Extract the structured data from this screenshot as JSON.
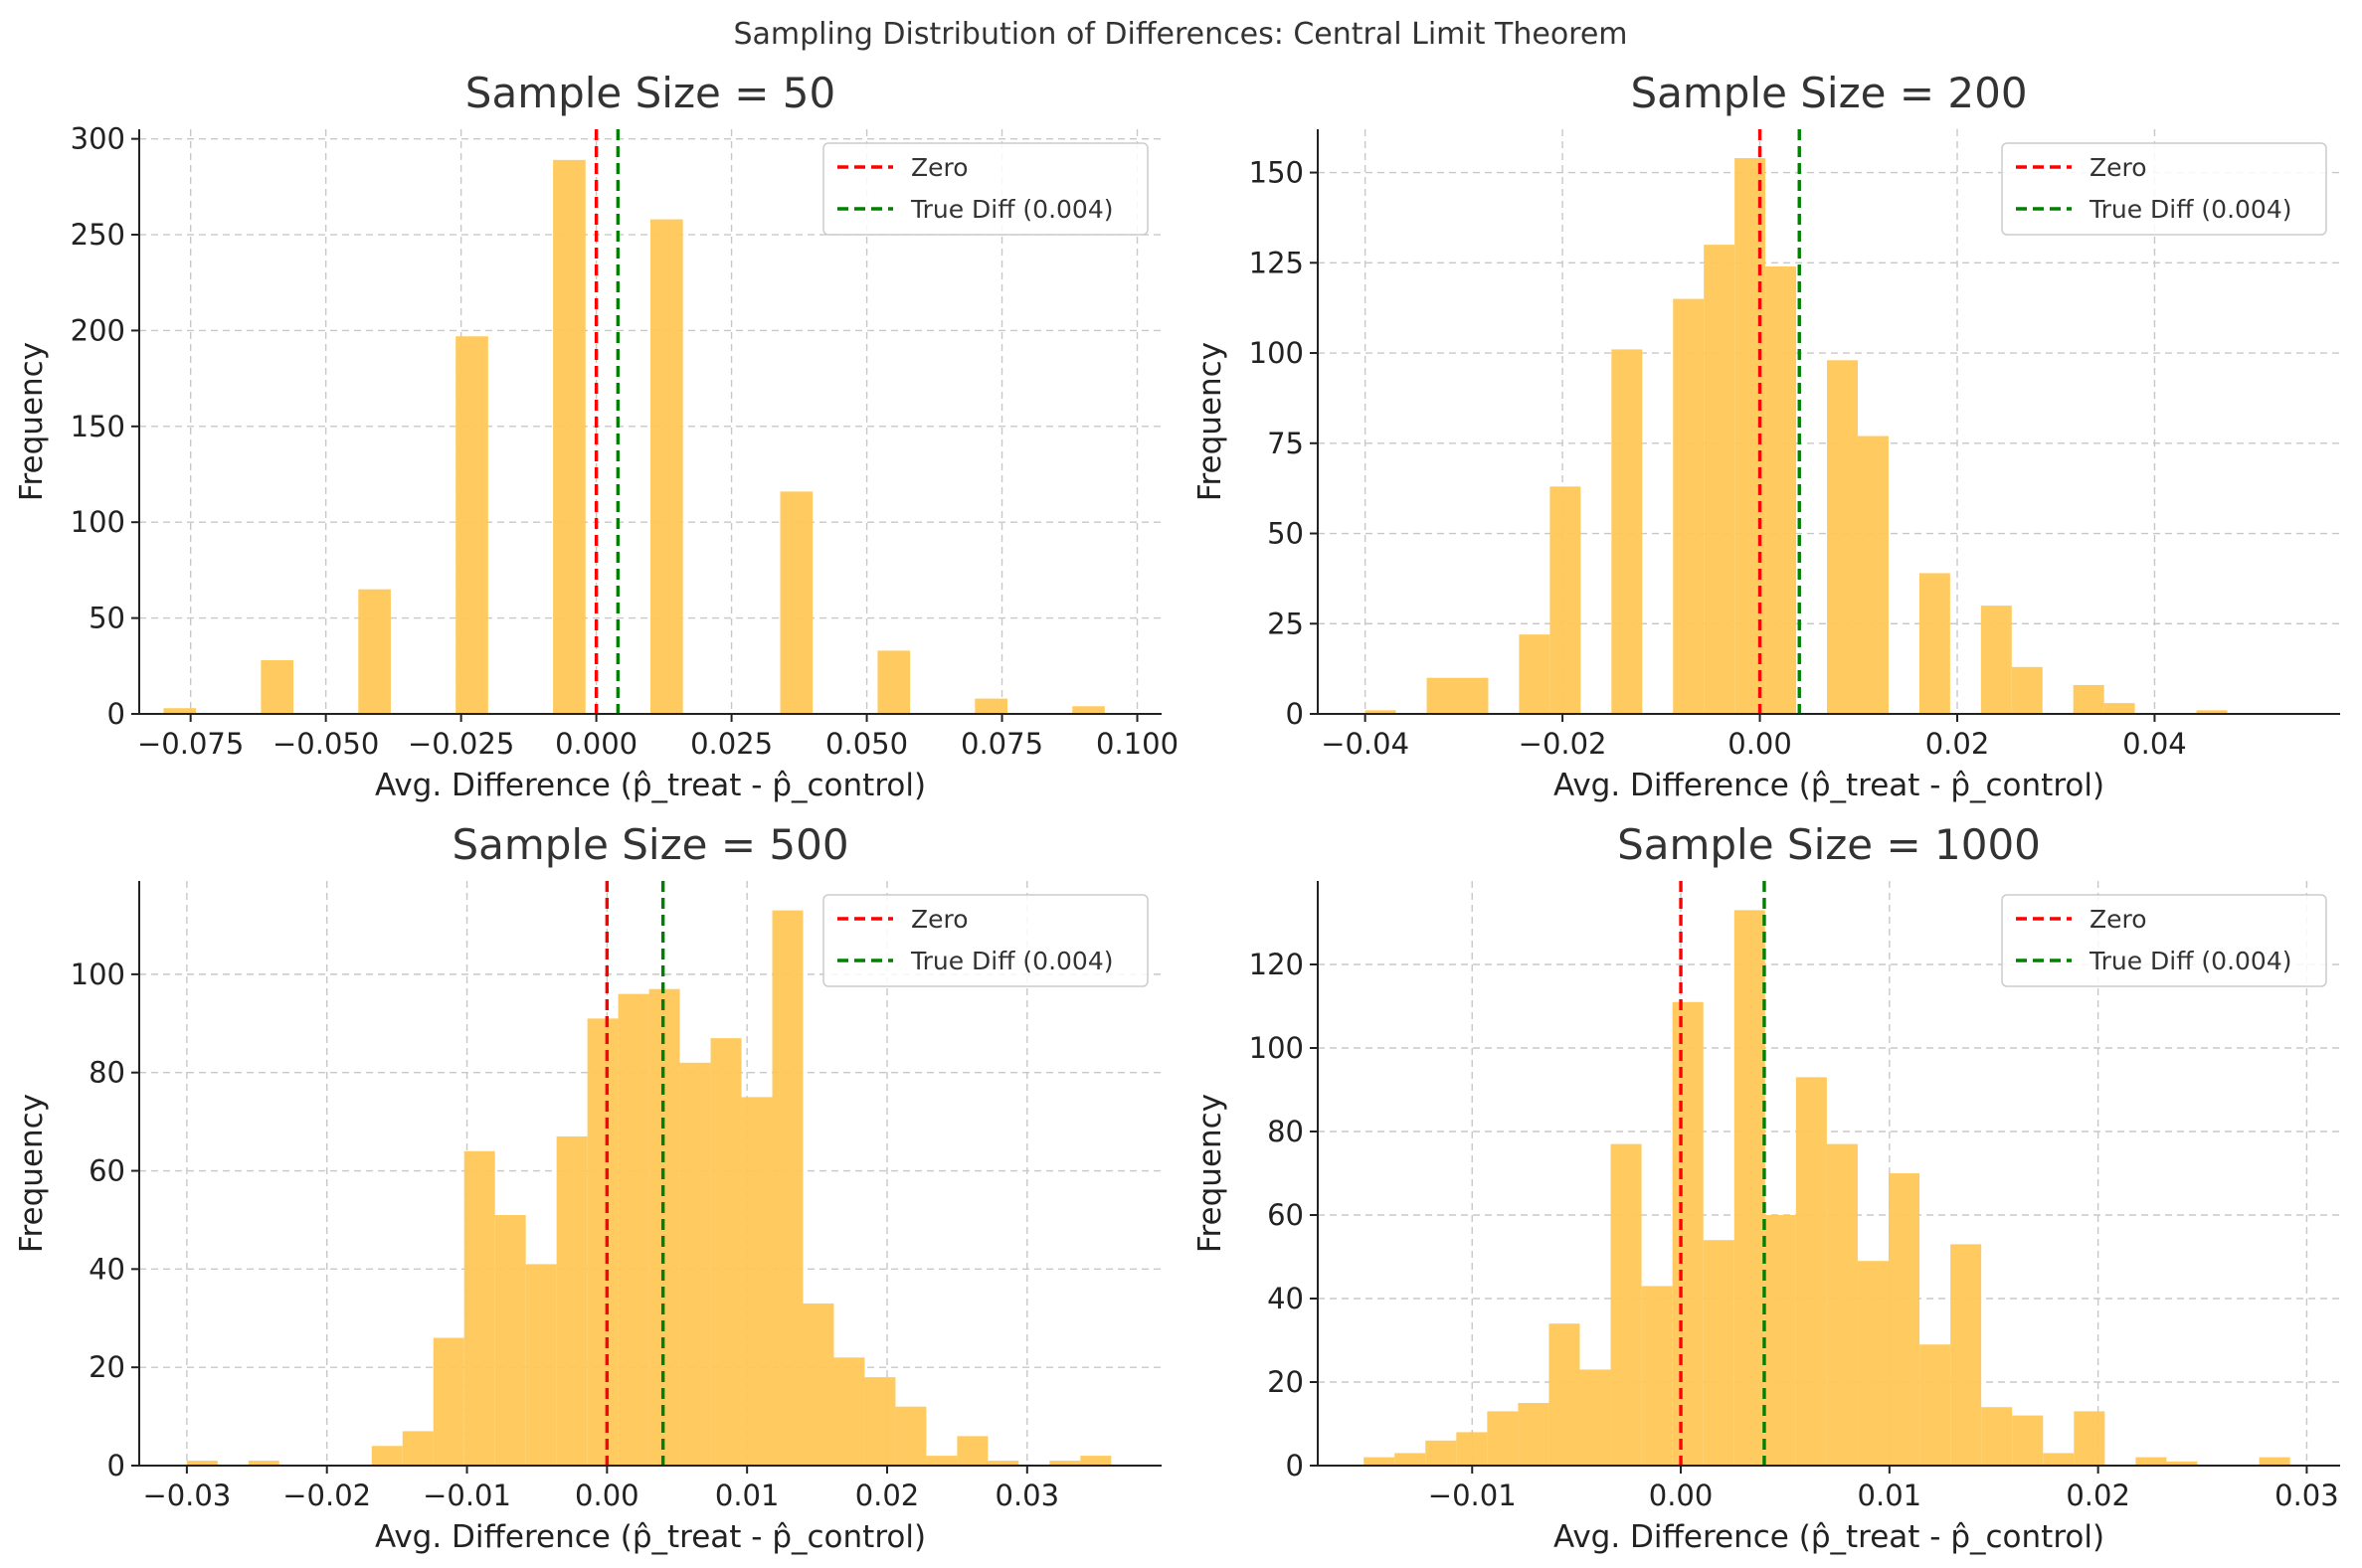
{
  "suptitle": "Sampling Distribution of Differences: Central Limit Theorem",
  "colors": {
    "bar": "#FFC857",
    "zero": "#FF0000",
    "true_diff": "#008000"
  },
  "chart_data": [
    {
      "type": "bar",
      "title": "Sample Size = 50",
      "xlabel": "Avg. Difference (p̂_treat - p̂_control)",
      "ylabel": "Frequency",
      "xlim": [
        -0.0845,
        0.1045
      ],
      "ylim": [
        0,
        305
      ],
      "xticks": [
        -0.075,
        -0.05,
        -0.025,
        0.0,
        0.025,
        0.05,
        0.075,
        0.1
      ],
      "xtick_labels": [
        "−0.075",
        "−0.050",
        "−0.025",
        "0.000",
        "0.025",
        "0.050",
        "0.075",
        "0.100"
      ],
      "yticks": [
        0,
        50,
        100,
        150,
        200,
        250,
        300
      ],
      "bins": {
        "start": -0.08,
        "width": 0.006
      },
      "counts": [
        3,
        0,
        0,
        28,
        0,
        0,
        65,
        0,
        0,
        197,
        0,
        0,
        289,
        0,
        0,
        258,
        0,
        0,
        0,
        116,
        0,
        0,
        33,
        0,
        0,
        8,
        0,
        0,
        4,
        0
      ],
      "vlines": [
        {
          "name": "Zero",
          "x": 0.0,
          "color": "#FF0000"
        },
        {
          "name": "True Diff (0.004)",
          "x": 0.004,
          "color": "#008000"
        }
      ],
      "legend": "top-right",
      "grid": true
    },
    {
      "type": "bar",
      "title": "Sample Size = 200",
      "xlabel": "Avg. Difference (p̂_treat - p̂_control)",
      "ylabel": "Frequency",
      "xlim": [
        -0.0448,
        0.0588
      ],
      "ylim": [
        0,
        162
      ],
      "xticks": [
        -0.04,
        -0.02,
        0.0,
        0.02,
        0.04
      ],
      "xtick_labels": [
        "−0.04",
        "−0.02",
        "0.00",
        "0.02",
        "0.04"
      ],
      "yticks": [
        0,
        25,
        50,
        75,
        100,
        125,
        150
      ],
      "bins": {
        "start": -0.04,
        "width": 0.00312
      },
      "counts": [
        1,
        0,
        10,
        10,
        0,
        22,
        63,
        0,
        101,
        0,
        115,
        130,
        154,
        124,
        0,
        98,
        77,
        0,
        39,
        0,
        30,
        13,
        0,
        8,
        3,
        0,
        0,
        1,
        0,
        0
      ],
      "vlines": [
        {
          "name": "Zero",
          "x": 0.0,
          "color": "#FF0000"
        },
        {
          "name": "True Diff (0.004)",
          "x": 0.004,
          "color": "#008000"
        }
      ],
      "legend": "top-right",
      "grid": true
    },
    {
      "type": "bar",
      "title": "Sample Size = 500",
      "xlabel": "Avg. Difference (p̂_treat - p̂_control)",
      "ylabel": "Frequency",
      "xlim": [
        -0.0334,
        0.0396
      ],
      "ylim": [
        0,
        119
      ],
      "xticks": [
        -0.03,
        -0.02,
        -0.01,
        0.0,
        0.01,
        0.02,
        0.03
      ],
      "xtick_labels": [
        "−0.03",
        "−0.02",
        "−0.01",
        "0.00",
        "0.01",
        "0.02",
        "0.03"
      ],
      "yticks": [
        0,
        20,
        40,
        60,
        80,
        100
      ],
      "bins": {
        "start": -0.03,
        "width": 0.0022
      },
      "counts": [
        1,
        0,
        1,
        0,
        0,
        0,
        4,
        7,
        26,
        64,
        51,
        41,
        67,
        91,
        96,
        97,
        82,
        87,
        75,
        113,
        33,
        22,
        18,
        12,
        2,
        6,
        1,
        0,
        1,
        2
      ],
      "vlines": [
        {
          "name": "Zero",
          "x": 0.0,
          "color": "#FF0000"
        },
        {
          "name": "True Diff (0.004)",
          "x": 0.004,
          "color": "#008000"
        }
      ],
      "legend": "top-right",
      "grid": true
    },
    {
      "type": "bar",
      "title": "Sample Size = 1000",
      "xlabel": "Avg. Difference (p̂_treat - p̂_control)",
      "ylabel": "Frequency",
      "xlim": [
        -0.0174,
        0.0316
      ],
      "ylim": [
        0,
        140
      ],
      "xticks": [
        -0.01,
        0.0,
        0.01,
        0.02,
        0.03
      ],
      "xtick_labels": [
        "−0.01",
        "0.00",
        "0.01",
        "0.02",
        "0.03"
      ],
      "yticks": [
        0,
        20,
        40,
        60,
        80,
        100,
        120
      ],
      "bins": {
        "start": -0.0152,
        "width": 0.00148
      },
      "counts": [
        2,
        3,
        6,
        8,
        13,
        15,
        34,
        23,
        77,
        43,
        111,
        54,
        133,
        60,
        93,
        77,
        49,
        70,
        29,
        53,
        14,
        12,
        3,
        13,
        0,
        2,
        1,
        0,
        0,
        2
      ],
      "vlines": [
        {
          "name": "Zero",
          "x": 0.0,
          "color": "#FF0000"
        },
        {
          "name": "True Diff (0.004)",
          "x": 0.004,
          "color": "#008000"
        }
      ],
      "legend": "top-right",
      "grid": true
    }
  ]
}
